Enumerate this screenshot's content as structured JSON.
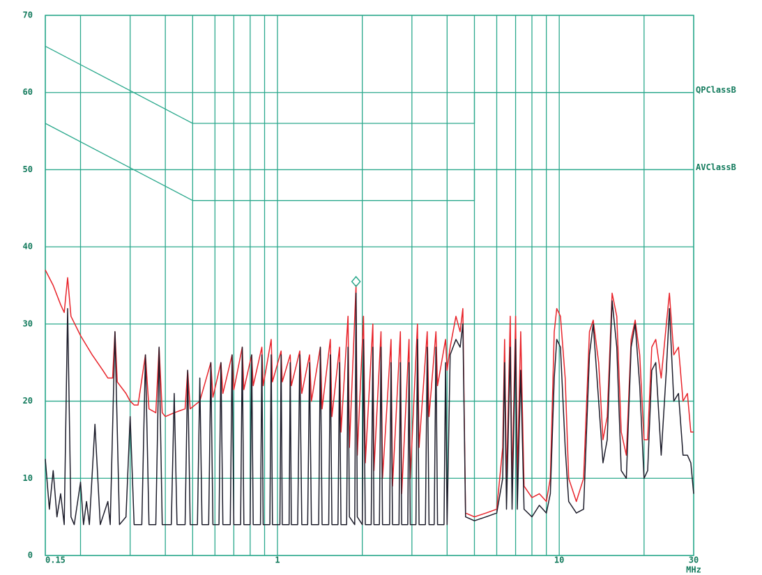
{
  "chart_data": {
    "type": "line",
    "x_label": "MHz",
    "xlog": true,
    "grid": true,
    "grid_color": "#2aa88c",
    "xlim": [
      0.15,
      30
    ],
    "ylim": [
      0,
      70
    ],
    "xticks": [
      0.15,
      1,
      10,
      30
    ],
    "xminor": [
      0.2,
      0.3,
      0.4,
      0.5,
      0.6,
      0.7,
      0.8,
      0.9,
      2,
      3,
      4,
      5,
      6,
      7,
      8,
      9,
      20
    ],
    "yticks": [
      0,
      10,
      20,
      30,
      40,
      50,
      60,
      70
    ],
    "marker": {
      "x": 1.9,
      "value": 35.5,
      "color": "#2aa88c"
    },
    "series": [
      {
        "name": "QPClassB",
        "color": "#2aa88c",
        "limit": true,
        "x": [
          0.15,
          0.5,
          5,
          5,
          30
        ],
        "values": [
          66,
          56,
          56,
          60,
          60
        ]
      },
      {
        "name": "AVClassB",
        "color": "#2aa88c",
        "limit": true,
        "x": [
          0.15,
          0.5,
          5,
          5,
          30
        ],
        "values": [
          56,
          46,
          46,
          50,
          50
        ]
      },
      {
        "color": "#e8232a",
        "x": [
          0.15,
          0.16,
          0.17,
          0.175,
          0.18,
          0.185,
          0.2,
          0.22,
          0.24,
          0.25,
          0.26,
          0.265,
          0.27,
          0.29,
          0.3,
          0.31,
          0.32,
          0.34,
          0.35,
          0.37,
          0.38,
          0.39,
          0.4,
          0.43,
          0.47,
          0.48,
          0.49,
          0.53,
          0.58,
          0.59,
          0.63,
          0.64,
          0.69,
          0.7,
          0.75,
          0.76,
          0.81,
          0.82,
          0.88,
          0.89,
          0.95,
          0.96,
          1.03,
          1.04,
          1.11,
          1.12,
          1.2,
          1.22,
          1.3,
          1.32,
          1.42,
          1.44,
          1.54,
          1.56,
          1.66,
          1.68,
          1.78,
          1.8,
          1.9,
          1.92,
          2.02,
          2.05,
          2.18,
          2.2,
          2.33,
          2.36,
          2.53,
          2.56,
          2.73,
          2.76,
          2.93,
          2.96,
          3.14,
          3.18,
          3.4,
          3.45,
          3.65,
          3.7,
          3.95,
          4.0,
          4.1,
          4.3,
          4.45,
          4.55,
          4.65,
          5.0,
          5.5,
          6.0,
          6.3,
          6.4,
          6.5,
          6.7,
          6.8,
          7.0,
          7.1,
          7.3,
          7.5,
          8.0,
          8.5,
          9.0,
          9.3,
          9.6,
          9.8,
          10.1,
          10.5,
          10.8,
          11.5,
          12.2,
          12.8,
          13.2,
          13.8,
          14.3,
          14.8,
          15.4,
          16,
          16.6,
          17.3,
          18,
          18.6,
          19.3,
          20,
          20.6,
          21.3,
          22,
          23,
          24,
          24.6,
          25.5,
          26.5,
          27.5,
          28.5,
          29.3,
          30
        ],
        "values": [
          37,
          35,
          32.5,
          31.5,
          36,
          31,
          28.5,
          26,
          24,
          23,
          23,
          29,
          22.5,
          21,
          20,
          19.5,
          19.5,
          26,
          19,
          18.5,
          27,
          18.5,
          18,
          18.5,
          19,
          24,
          19,
          20,
          25,
          20.5,
          25,
          21,
          26,
          21.5,
          27,
          21.5,
          26,
          22,
          27,
          22,
          28,
          22.5,
          26.5,
          22.5,
          26,
          22,
          26.5,
          21,
          26,
          20,
          27,
          19,
          28,
          18,
          27,
          16,
          31,
          14,
          35,
          13,
          31,
          12,
          30,
          11,
          29,
          10,
          28,
          9,
          29,
          8,
          28,
          10,
          30,
          14,
          29,
          18,
          29,
          22,
          28,
          24,
          27,
          31,
          29,
          32,
          5.5,
          5,
          5.5,
          6,
          14,
          28,
          9,
          31,
          9,
          31,
          10,
          29,
          9,
          7.5,
          8,
          7,
          10,
          29,
          32,
          31,
          23,
          10,
          7,
          10,
          29,
          30.5,
          25,
          15,
          18,
          34,
          31,
          16,
          13,
          28,
          30.5,
          26,
          15,
          15,
          27,
          28,
          23,
          30,
          34,
          26,
          27,
          20,
          21,
          16,
          16
        ]
      },
      {
        "color": "#1c1c2a",
        "x": [
          0.15,
          0.155,
          0.16,
          0.165,
          0.17,
          0.175,
          0.18,
          0.185,
          0.19,
          0.2,
          0.205,
          0.21,
          0.215,
          0.225,
          0.235,
          0.25,
          0.255,
          0.265,
          0.275,
          0.29,
          0.3,
          0.31,
          0.33,
          0.34,
          0.35,
          0.37,
          0.38,
          0.39,
          0.42,
          0.43,
          0.44,
          0.47,
          0.48,
          0.49,
          0.52,
          0.53,
          0.54,
          0.57,
          0.58,
          0.59,
          0.62,
          0.63,
          0.64,
          0.68,
          0.69,
          0.7,
          0.74,
          0.75,
          0.76,
          0.8,
          0.81,
          0.82,
          0.87,
          0.88,
          0.89,
          0.94,
          0.95,
          0.96,
          1.02,
          1.03,
          1.04,
          1.1,
          1.11,
          1.12,
          1.18,
          1.2,
          1.22,
          1.28,
          1.3,
          1.32,
          1.4,
          1.42,
          1.44,
          1.52,
          1.54,
          1.56,
          1.64,
          1.66,
          1.68,
          1.76,
          1.78,
          1.8,
          1.88,
          1.9,
          1.92,
          2.0,
          2.02,
          2.05,
          2.15,
          2.18,
          2.2,
          2.3,
          2.33,
          2.36,
          2.5,
          2.53,
          2.56,
          2.7,
          2.73,
          2.76,
          2.9,
          2.93,
          2.96,
          3.1,
          3.14,
          3.18,
          3.35,
          3.4,
          3.45,
          3.6,
          3.65,
          3.7,
          3.9,
          3.95,
          4.0,
          4.1,
          4.3,
          4.45,
          4.55,
          4.65,
          5.0,
          5.5,
          6.0,
          6.3,
          6.4,
          6.5,
          6.7,
          6.8,
          7.0,
          7.1,
          7.3,
          7.5,
          8.0,
          8.5,
          9.0,
          9.3,
          9.6,
          9.8,
          10.1,
          10.5,
          10.8,
          11.5,
          12.2,
          12.8,
          13.2,
          13.8,
          14.3,
          14.8,
          15.4,
          16,
          16.6,
          17.3,
          18,
          18.6,
          19.3,
          20,
          20.6,
          21.3,
          22,
          23,
          24,
          24.6,
          25.5,
          26.5,
          27.5,
          28.5,
          29.3,
          30
        ],
        "values": [
          12.5,
          6,
          11,
          5,
          8,
          4,
          32,
          5,
          4,
          9.5,
          4,
          7,
          4,
          17,
          4,
          7,
          4,
          29,
          4,
          5,
          18,
          4,
          4,
          26,
          4,
          4,
          27,
          4,
          4,
          21,
          4,
          4,
          24,
          4,
          4,
          23,
          4,
          4,
          25,
          4,
          4,
          25,
          4,
          4,
          26,
          4,
          4,
          27,
          4,
          4,
          26,
          4,
          4,
          26,
          4,
          4,
          26,
          4,
          4,
          26,
          4,
          4,
          25,
          4,
          4,
          26,
          4,
          4,
          25,
          4,
          4,
          27,
          4,
          4,
          26,
          4,
          4,
          25,
          4,
          4,
          27,
          5,
          4,
          34,
          5,
          4,
          28,
          4,
          4,
          27,
          4,
          4,
          27,
          4,
          4,
          25,
          4,
          4,
          25,
          4,
          4,
          25,
          4,
          4,
          28,
          4,
          4,
          27,
          4,
          4,
          27,
          4,
          4,
          25,
          4,
          26,
          28,
          27,
          30,
          5,
          4.5,
          5,
          5.5,
          10,
          25,
          6,
          27,
          6,
          28,
          6,
          24,
          6,
          5,
          6.5,
          5.5,
          8,
          23,
          28,
          27,
          14,
          7,
          5.5,
          6,
          26,
          30,
          20,
          12,
          15,
          33,
          27,
          11,
          10,
          27,
          30,
          22,
          10,
          11,
          24,
          25,
          13,
          24,
          32,
          20,
          21,
          13,
          13,
          12,
          8
        ]
      }
    ]
  }
}
